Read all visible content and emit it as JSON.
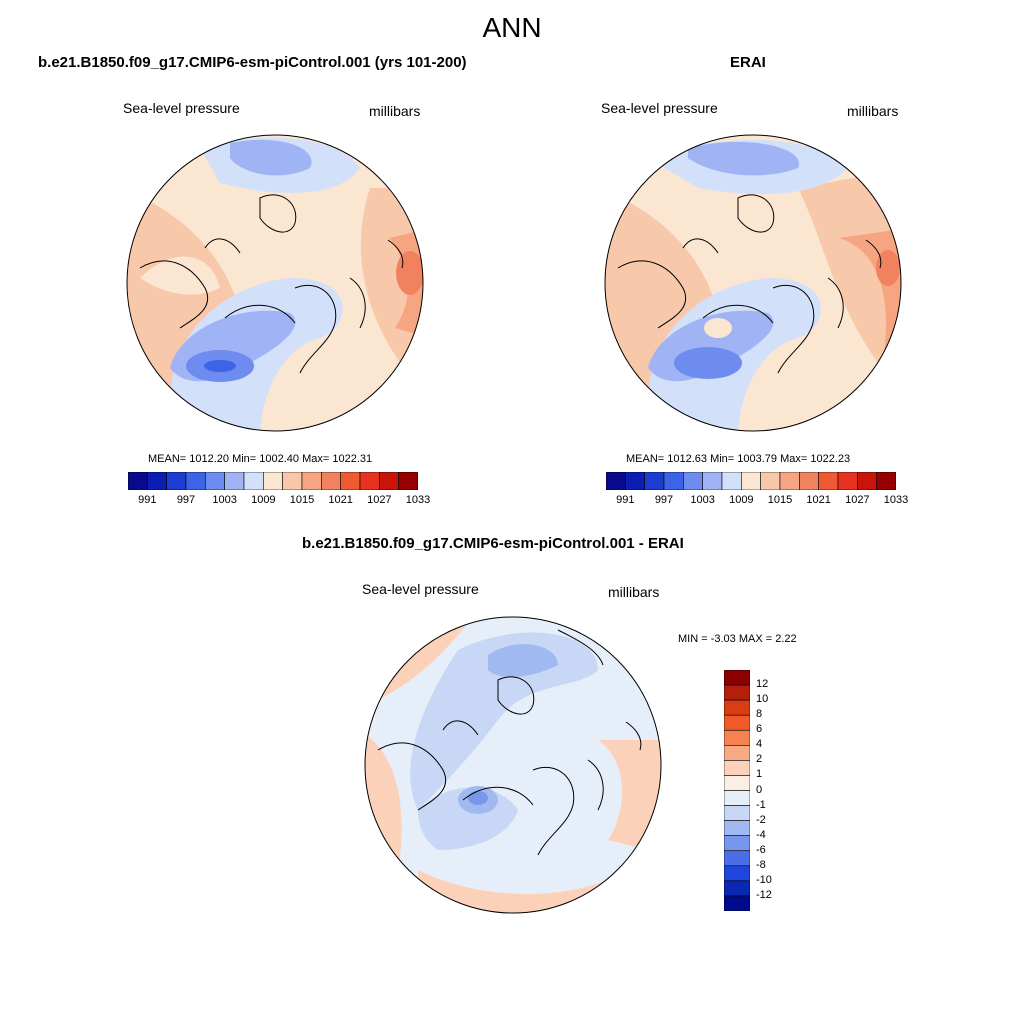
{
  "figure": {
    "title": "ANN"
  },
  "panels": [
    {
      "title": "b.e21.B1850.f09_g17.CMIP6-esm-piControl.001 (yrs 101-200)",
      "left_label": "Sea-level pressure",
      "right_label": "millibars",
      "stats": "MEAN= 1012.20  Min= 1002.40  Max= 1022.31"
    },
    {
      "title": "ERAI",
      "left_label": "Sea-level pressure",
      "right_label": "millibars",
      "stats": "MEAN= 1012.63  Min= 1003.79  Max= 1022.23"
    },
    {
      "title": "b.e21.B1850.f09_g17.CMIP6-esm-piControl.001 - ERAI",
      "left_label": "Sea-level pressure",
      "right_label": "millibars",
      "stats": "MIN =  -3.03 MAX =   2.22"
    }
  ],
  "colorbar_abs": {
    "labels": [
      "991",
      "997",
      "1003",
      "1009",
      "1015",
      "1021",
      "1027",
      "1033"
    ],
    "colors": [
      "#0a0a8c",
      "#0a1eb4",
      "#1e3cd2",
      "#3c64e6",
      "#6e8cf0",
      "#a0b4f5",
      "#d2e0fa",
      "#fbe6d2",
      "#f8c8aa",
      "#f5a582",
      "#f0825f",
      "#f05a32",
      "#e6321e",
      "#c8140a",
      "#960000"
    ]
  },
  "colorbar_diff": {
    "labels": [
      "12",
      "10",
      "8",
      "6",
      "4",
      "2",
      "1",
      "0",
      "-1",
      "-2",
      "-4",
      "-6",
      "-8",
      "-10",
      "-12"
    ],
    "colors": [
      "#8c0000",
      "#b41e0a",
      "#dc3c14",
      "#f05a28",
      "#f58250",
      "#f8aa82",
      "#fbd2b9",
      "#fbeee4",
      "#e6eefa",
      "#c8d7f5",
      "#a0b9f0",
      "#7896eb",
      "#4b6ee6",
      "#1e46dc",
      "#0a28b4",
      "#000a8c"
    ]
  }
}
